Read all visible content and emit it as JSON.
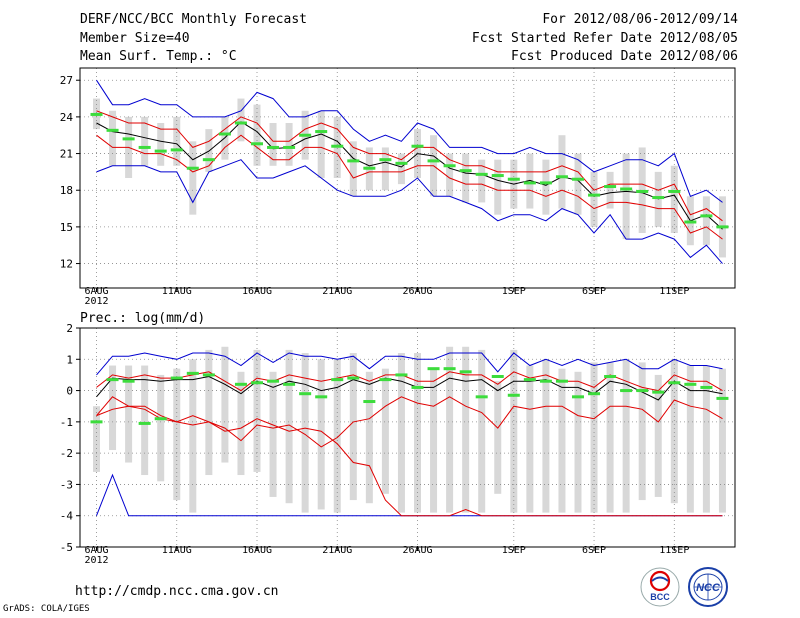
{
  "header": {
    "title": "DERF/NCC/BCC Monthly Forecast",
    "member_size": "Member Size=40",
    "variable": "Mean Surf. Temp.: °C",
    "period": "For 2012/08/06-2012/09/14",
    "started": "Fcst Started Refer Date 2012/08/05",
    "produced": "Fcst Produced Date 2012/08/06"
  },
  "footer": {
    "url": "http://cmdp.ncc.cma.gov.cn",
    "grads": "GrADS: COLA/IGES",
    "logo_bcc": "BCC",
    "logo_ncc": "NCC"
  },
  "colors": {
    "box": "#d8d8d8",
    "mean": "#000000",
    "sd": "#e00000",
    "extreme": "#0000d0",
    "obs": "#3cdc3c",
    "grid": "#888888"
  },
  "chart_data": [
    {
      "type": "ensemble-plume",
      "title": "Mean Surf. Temp.: °C",
      "x_tick_labels": [
        "6AUG\n2012",
        "11AUG",
        "16AUG",
        "21AUG",
        "26AUG",
        "1SEP",
        "6SEP",
        "11SEP"
      ],
      "x_tick_days": [
        0,
        5,
        10,
        15,
        20,
        26,
        31,
        36
      ],
      "ylim": [
        10,
        28
      ],
      "y_ticks": [
        12,
        15,
        18,
        21,
        24,
        27
      ],
      "grid": true,
      "series": [
        {
          "name": "max",
          "values": [
            27.0,
            25.0,
            25.0,
            25.5,
            25.0,
            25.0,
            24.0,
            24.0,
            24.0,
            24.5,
            26.0,
            25.5,
            24.0,
            24.0,
            24.5,
            24.5,
            23.0,
            22.0,
            22.5,
            22.0,
            23.5,
            23.0,
            21.5,
            21.5,
            21.5,
            21.0,
            21.0,
            21.5,
            21.0,
            21.0,
            20.5,
            19.5,
            20.0,
            20.5,
            20.5,
            20.0,
            21.0,
            17.5,
            18.0,
            17.0
          ]
        },
        {
          "name": "plus_sd",
          "values": [
            24.5,
            24.0,
            23.5,
            23.5,
            23.0,
            23.0,
            21.5,
            22.0,
            23.0,
            24.0,
            23.5,
            22.0,
            22.0,
            23.0,
            23.5,
            23.0,
            21.5,
            21.0,
            21.0,
            20.5,
            21.5,
            21.5,
            20.5,
            20.0,
            20.0,
            19.5,
            19.5,
            19.5,
            19.5,
            20.0,
            19.5,
            18.0,
            18.5,
            18.5,
            18.5,
            18.0,
            18.5,
            16.0,
            16.5,
            15.5
          ]
        },
        {
          "name": "mean",
          "values": [
            23.5,
            22.8,
            22.6,
            22.3,
            22.0,
            21.8,
            20.5,
            21.2,
            22.3,
            23.6,
            22.8,
            21.4,
            21.5,
            22.2,
            22.6,
            22.0,
            20.6,
            20.0,
            20.3,
            19.9,
            21.0,
            20.8,
            19.8,
            19.4,
            19.3,
            18.8,
            18.5,
            18.8,
            18.4,
            19.1,
            18.8,
            17.5,
            17.8,
            17.9,
            17.8,
            17.3,
            17.6,
            15.5,
            16.0,
            14.8
          ]
        },
        {
          "name": "minus_sd",
          "values": [
            22.5,
            21.5,
            21.5,
            21.0,
            21.0,
            20.5,
            19.5,
            20.0,
            21.5,
            22.5,
            21.5,
            20.5,
            20.5,
            21.5,
            21.5,
            21.0,
            19.0,
            19.5,
            19.5,
            19.5,
            20.0,
            20.0,
            19.0,
            18.5,
            18.5,
            18.0,
            18.0,
            18.0,
            17.5,
            18.0,
            17.5,
            16.5,
            17.0,
            17.0,
            16.8,
            16.5,
            16.5,
            14.5,
            15.0,
            14.0
          ]
        },
        {
          "name": "min",
          "values": [
            19.5,
            20.0,
            20.0,
            20.0,
            19.5,
            19.5,
            17.0,
            19.5,
            20.0,
            20.5,
            19.0,
            19.0,
            19.5,
            20.0,
            19.0,
            18.0,
            17.5,
            17.5,
            17.5,
            18.0,
            19.0,
            17.5,
            17.5,
            17.0,
            16.5,
            15.5,
            16.0,
            16.0,
            15.5,
            16.5,
            16.0,
            14.5,
            16.0,
            14.0,
            14.0,
            14.5,
            14.0,
            12.5,
            13.5,
            12.0
          ]
        },
        {
          "name": "box_high",
          "values": [
            25.5,
            24.5,
            24.0,
            24.0,
            23.5,
            24.0,
            22.0,
            23.0,
            24.0,
            25.5,
            25.0,
            23.5,
            23.5,
            24.5,
            24.5,
            24.0,
            22.0,
            21.5,
            21.5,
            21.0,
            23.0,
            22.5,
            21.0,
            21.0,
            20.5,
            20.5,
            20.5,
            21.0,
            20.5,
            22.5,
            21.0,
            19.5,
            19.5,
            21.0,
            21.5,
            19.5,
            20.0,
            17.5,
            17.5,
            17.5
          ]
        },
        {
          "name": "box_low",
          "values": [
            23.0,
            20.0,
            19.0,
            20.0,
            20.0,
            20.0,
            16.0,
            19.5,
            20.5,
            22.0,
            20.0,
            20.0,
            20.0,
            20.5,
            19.0,
            19.0,
            17.5,
            18.0,
            18.0,
            18.5,
            19.0,
            17.5,
            17.5,
            17.0,
            17.0,
            16.0,
            16.5,
            16.5,
            16.0,
            16.5,
            16.0,
            15.0,
            16.5,
            14.0,
            14.5,
            15.0,
            14.5,
            13.5,
            13.5,
            12.5
          ]
        },
        {
          "name": "observed",
          "values": [
            24.2,
            22.9,
            22.2,
            21.5,
            21.2,
            21.3,
            19.8,
            20.5,
            22.6,
            23.5,
            21.8,
            21.5,
            21.5,
            22.5,
            22.8,
            21.6,
            20.4,
            19.8,
            20.5,
            20.2,
            21.6,
            20.4,
            20.0,
            19.6,
            19.3,
            19.2,
            18.9,
            18.6,
            18.6,
            19.1,
            18.9,
            17.6,
            18.3,
            18.1,
            17.9,
            17.4,
            17.9,
            15.4,
            15.9,
            15.0
          ]
        }
      ]
    },
    {
      "type": "ensemble-plume",
      "title": "Prec.: log(mm/d)",
      "x_tick_labels": [
        "6AUG\n2012",
        "11AUG",
        "16AUG",
        "21AUG",
        "26AUG",
        "1SEP",
        "6SEP",
        "11SEP"
      ],
      "x_tick_days": [
        0,
        5,
        10,
        15,
        20,
        26,
        31,
        36
      ],
      "ylim": [
        -5,
        2
      ],
      "y_ticks": [
        -5,
        -4,
        -3,
        -2,
        -1,
        0,
        1,
        2
      ],
      "grid": true,
      "series": [
        {
          "name": "max",
          "values": [
            0.5,
            1.1,
            1.1,
            1.2,
            1.1,
            1.0,
            1.2,
            1.2,
            1.1,
            0.8,
            1.2,
            0.9,
            1.2,
            1.1,
            1.1,
            1.0,
            1.1,
            0.7,
            1.1,
            1.1,
            1.0,
            1.0,
            1.2,
            1.2,
            1.2,
            0.6,
            1.2,
            0.8,
            1.0,
            0.8,
            1.0,
            0.8,
            0.9,
            1.0,
            0.7,
            0.7,
            1.0,
            0.8,
            0.8,
            0.7
          ]
        },
        {
          "name": "plus_sd",
          "values": [
            0.1,
            0.5,
            0.4,
            0.5,
            0.4,
            0.4,
            0.5,
            0.6,
            0.3,
            0.0,
            0.4,
            0.3,
            0.5,
            0.4,
            0.3,
            0.4,
            0.5,
            0.3,
            0.5,
            0.5,
            0.3,
            0.3,
            0.6,
            0.5,
            0.5,
            0.2,
            0.6,
            0.4,
            0.5,
            0.3,
            0.3,
            0.1,
            0.5,
            0.3,
            0.1,
            0.0,
            0.5,
            0.3,
            0.3,
            0.0
          ]
        },
        {
          "name": "mean",
          "values": [
            -0.2,
            0.4,
            0.35,
            0.35,
            0.3,
            0.35,
            0.35,
            0.45,
            0.2,
            -0.1,
            0.3,
            0.1,
            0.3,
            0.2,
            0.0,
            0.1,
            0.35,
            0.2,
            0.4,
            0.3,
            0.1,
            0.1,
            0.4,
            0.3,
            0.35,
            0.0,
            0.3,
            0.3,
            0.35,
            0.1,
            0.1,
            -0.1,
            0.3,
            0.2,
            -0.05,
            -0.3,
            0.3,
            0.0,
            0.0,
            -0.1
          ]
        },
        {
          "name": "minus_sd",
          "values": [
            -0.8,
            -0.2,
            -0.5,
            -0.5,
            -0.8,
            -1.0,
            -0.8,
            -1.0,
            -1.2,
            -1.6,
            -1.1,
            -1.2,
            -1.1,
            -1.4,
            -1.8,
            -1.5,
            -1.0,
            -0.9,
            -0.5,
            -0.2,
            -0.4,
            -0.5,
            -0.2,
            -0.5,
            -0.7,
            -1.2,
            -0.5,
            -0.6,
            -0.5,
            -0.5,
            -0.8,
            -0.9,
            -0.5,
            -0.5,
            -0.6,
            -1.0,
            -0.3,
            -0.5,
            -0.6,
            -0.9
          ]
        },
        {
          "name": "min",
          "values": [
            -4.0,
            -2.7,
            -4.0,
            -4.0,
            -4.0,
            -4.0,
            -4.0,
            -4.0,
            -4.0,
            -4.0,
            -4.0,
            -4.0,
            -4.0,
            -4.0,
            -4.0,
            -4.0,
            -4.0,
            -4.0,
            -4.0,
            -4.0,
            -4.0,
            -4.0,
            -4.0,
            -4.0,
            -4.0,
            -4.0,
            -4.0,
            -4.0,
            -4.0,
            -4.0,
            -4.0,
            -4.0,
            -4.0,
            -4.0,
            -4.0,
            -4.0,
            -4.0,
            -4.0,
            -4.0,
            -4.0
          ]
        },
        {
          "name": "minus_2sd",
          "values": [
            -0.8,
            -0.6,
            -0.5,
            -0.6,
            -0.9,
            -1.0,
            -1.1,
            -1.0,
            -1.3,
            -1.2,
            -0.9,
            -1.1,
            -1.3,
            -1.2,
            -1.3,
            -1.7,
            -2.3,
            -2.4,
            -3.5,
            -4.0,
            -4.0,
            -4.0,
            -4.0,
            -3.8,
            -4.0,
            -4.0,
            -4.0,
            -4.0,
            -4.0,
            -4.0,
            -4.0,
            -4.0,
            -4.0,
            -4.0,
            -4.0,
            -4.0,
            -4.0,
            -4.0,
            -4.0,
            -4.0
          ]
        },
        {
          "name": "box_high",
          "values": [
            -0.5,
            0.8,
            0.8,
            0.8,
            0.5,
            0.7,
            1.0,
            1.3,
            1.4,
            0.6,
            1.3,
            0.6,
            1.3,
            1.2,
            1.0,
            1.0,
            1.2,
            0.6,
            0.7,
            1.2,
            1.2,
            0.7,
            1.4,
            1.4,
            1.3,
            0.3,
            1.3,
            0.8,
            1.0,
            0.7,
            0.6,
            0.9,
            0.9,
            1.0,
            0.9,
            0.5,
            1.0,
            0.8,
            0.8,
            0.7
          ]
        },
        {
          "name": "box_low",
          "values": [
            -2.6,
            -1.9,
            -2.3,
            -2.7,
            -2.9,
            -3.5,
            -3.9,
            -2.7,
            -2.3,
            -2.7,
            -2.6,
            -3.4,
            -3.6,
            -3.9,
            -3.8,
            -3.9,
            -3.5,
            -3.6,
            -3.3,
            -3.9,
            -3.9,
            -3.9,
            -3.9,
            -3.9,
            -3.9,
            -3.3,
            -3.9,
            -3.9,
            -3.9,
            -3.9,
            -3.9,
            -3.9,
            -3.9,
            -3.9,
            -3.5,
            -3.4,
            -3.6,
            -3.9,
            -3.9,
            -3.9
          ]
        },
        {
          "name": "observed",
          "values": [
            -1.0,
            0.35,
            0.3,
            -1.05,
            -0.9,
            0.4,
            0.55,
            0.5,
            null,
            0.2,
            0.25,
            0.3,
            0.2,
            -0.1,
            -0.2,
            0.35,
            0.4,
            -0.35,
            0.35,
            0.5,
            0.1,
            0.7,
            0.7,
            0.6,
            -0.2,
            0.45,
            -0.15,
            0.35,
            0.3,
            0.3,
            -0.2,
            -0.1,
            0.45,
            0.0,
            0.0,
            -0.05,
            0.25,
            0.2,
            0.1,
            -0.25
          ]
        }
      ]
    }
  ]
}
